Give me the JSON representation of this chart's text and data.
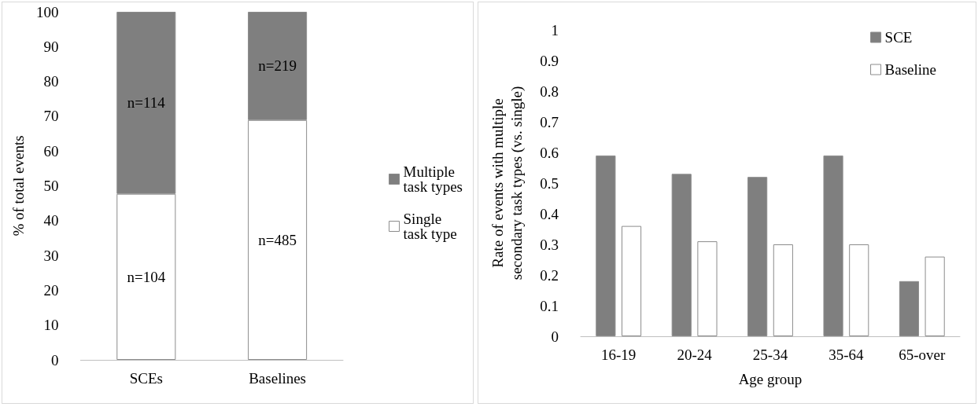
{
  "chart_data": [
    {
      "type": "bar",
      "ylabel": "% of total events",
      "categories": [
        "SCEs",
        "Baselines"
      ],
      "stacked": true,
      "legend": "right",
      "series": [
        {
          "name": "Single\ntask type",
          "color": "#ffffff",
          "values": [
            47.7,
            68.9
          ]
        },
        {
          "name": "Multiple\ntask types",
          "color": "#7f7f7f",
          "values": [
            52.3,
            31.1
          ]
        }
      ],
      "annotations": [
        "n=104",
        "n=485",
        "n=114",
        "n=219"
      ],
      "ylim": [
        0,
        100
      ],
      "yticks": [
        0,
        10,
        20,
        30,
        40,
        50,
        60,
        70,
        80,
        90,
        100
      ]
    },
    {
      "type": "bar",
      "ylabel": "Rate of events with multiple\nsecondary task types (vs. single)",
      "xlabel": "Age group",
      "categories": [
        "16-19",
        "20-24",
        "25-34",
        "35-64",
        "65-over"
      ],
      "legend": "top right",
      "series": [
        {
          "name": "SCE",
          "color": "#7f7f7f",
          "values": [
            0.59,
            0.53,
            0.52,
            0.59,
            0.18
          ]
        },
        {
          "name": "Baseline",
          "color": "#ffffff",
          "values": [
            0.36,
            0.31,
            0.3,
            0.3,
            0.26
          ]
        }
      ],
      "ylim": [
        0,
        1
      ],
      "yticks": [
        0,
        0.1,
        0.2,
        0.3,
        0.4,
        0.5,
        0.6,
        0.7,
        0.8,
        0.9,
        1
      ]
    }
  ]
}
